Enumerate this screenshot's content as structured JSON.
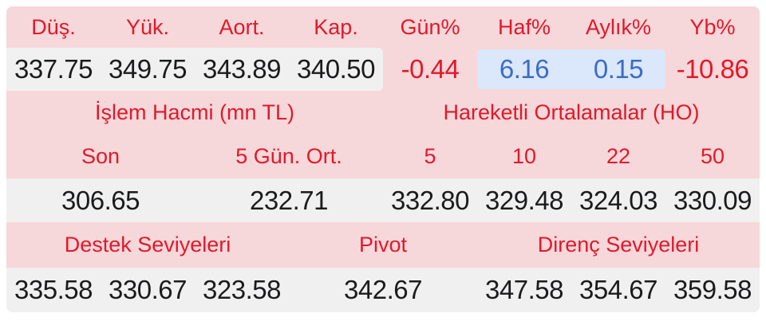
{
  "summary": {
    "headers": [
      "Düş.",
      "Yük.",
      "Aort.",
      "Kap.",
      "Gün%",
      "Haf%",
      "Aylık%",
      "Yb%"
    ],
    "values": [
      "337.75",
      "349.75",
      "343.89",
      "340.50",
      "-0.44",
      "6.16",
      "0.15",
      "-10.86"
    ]
  },
  "volume": {
    "title": "İşlem Hacmi (mn TL)",
    "headers": [
      "Son",
      "5 Gün. Ort."
    ],
    "values": [
      "306.65",
      "232.71"
    ]
  },
  "moving_averages": {
    "title": "Hareketli Ortalamalar (HO)",
    "headers": [
      "5",
      "10",
      "22",
      "50"
    ],
    "values": [
      "332.80",
      "329.48",
      "324.03",
      "330.09"
    ]
  },
  "levels": {
    "support": {
      "title": "Destek Seviyeleri",
      "values": [
        "335.58",
        "330.67",
        "323.58"
      ]
    },
    "pivot": {
      "title": "Pivot",
      "value": "342.67"
    },
    "resistance": {
      "title": "Direnç Seviyeleri",
      "values": [
        "347.58",
        "354.67",
        "359.58"
      ]
    }
  },
  "colors": {
    "card_pink": "#f6d7da",
    "value_gray": "#f1f0f1",
    "highlight_blue_bg": "#dbe7fa",
    "header_red": "#e1192a",
    "highlight_blue_text": "#3b6cc5",
    "value_dark": "#1b1b1d"
  }
}
